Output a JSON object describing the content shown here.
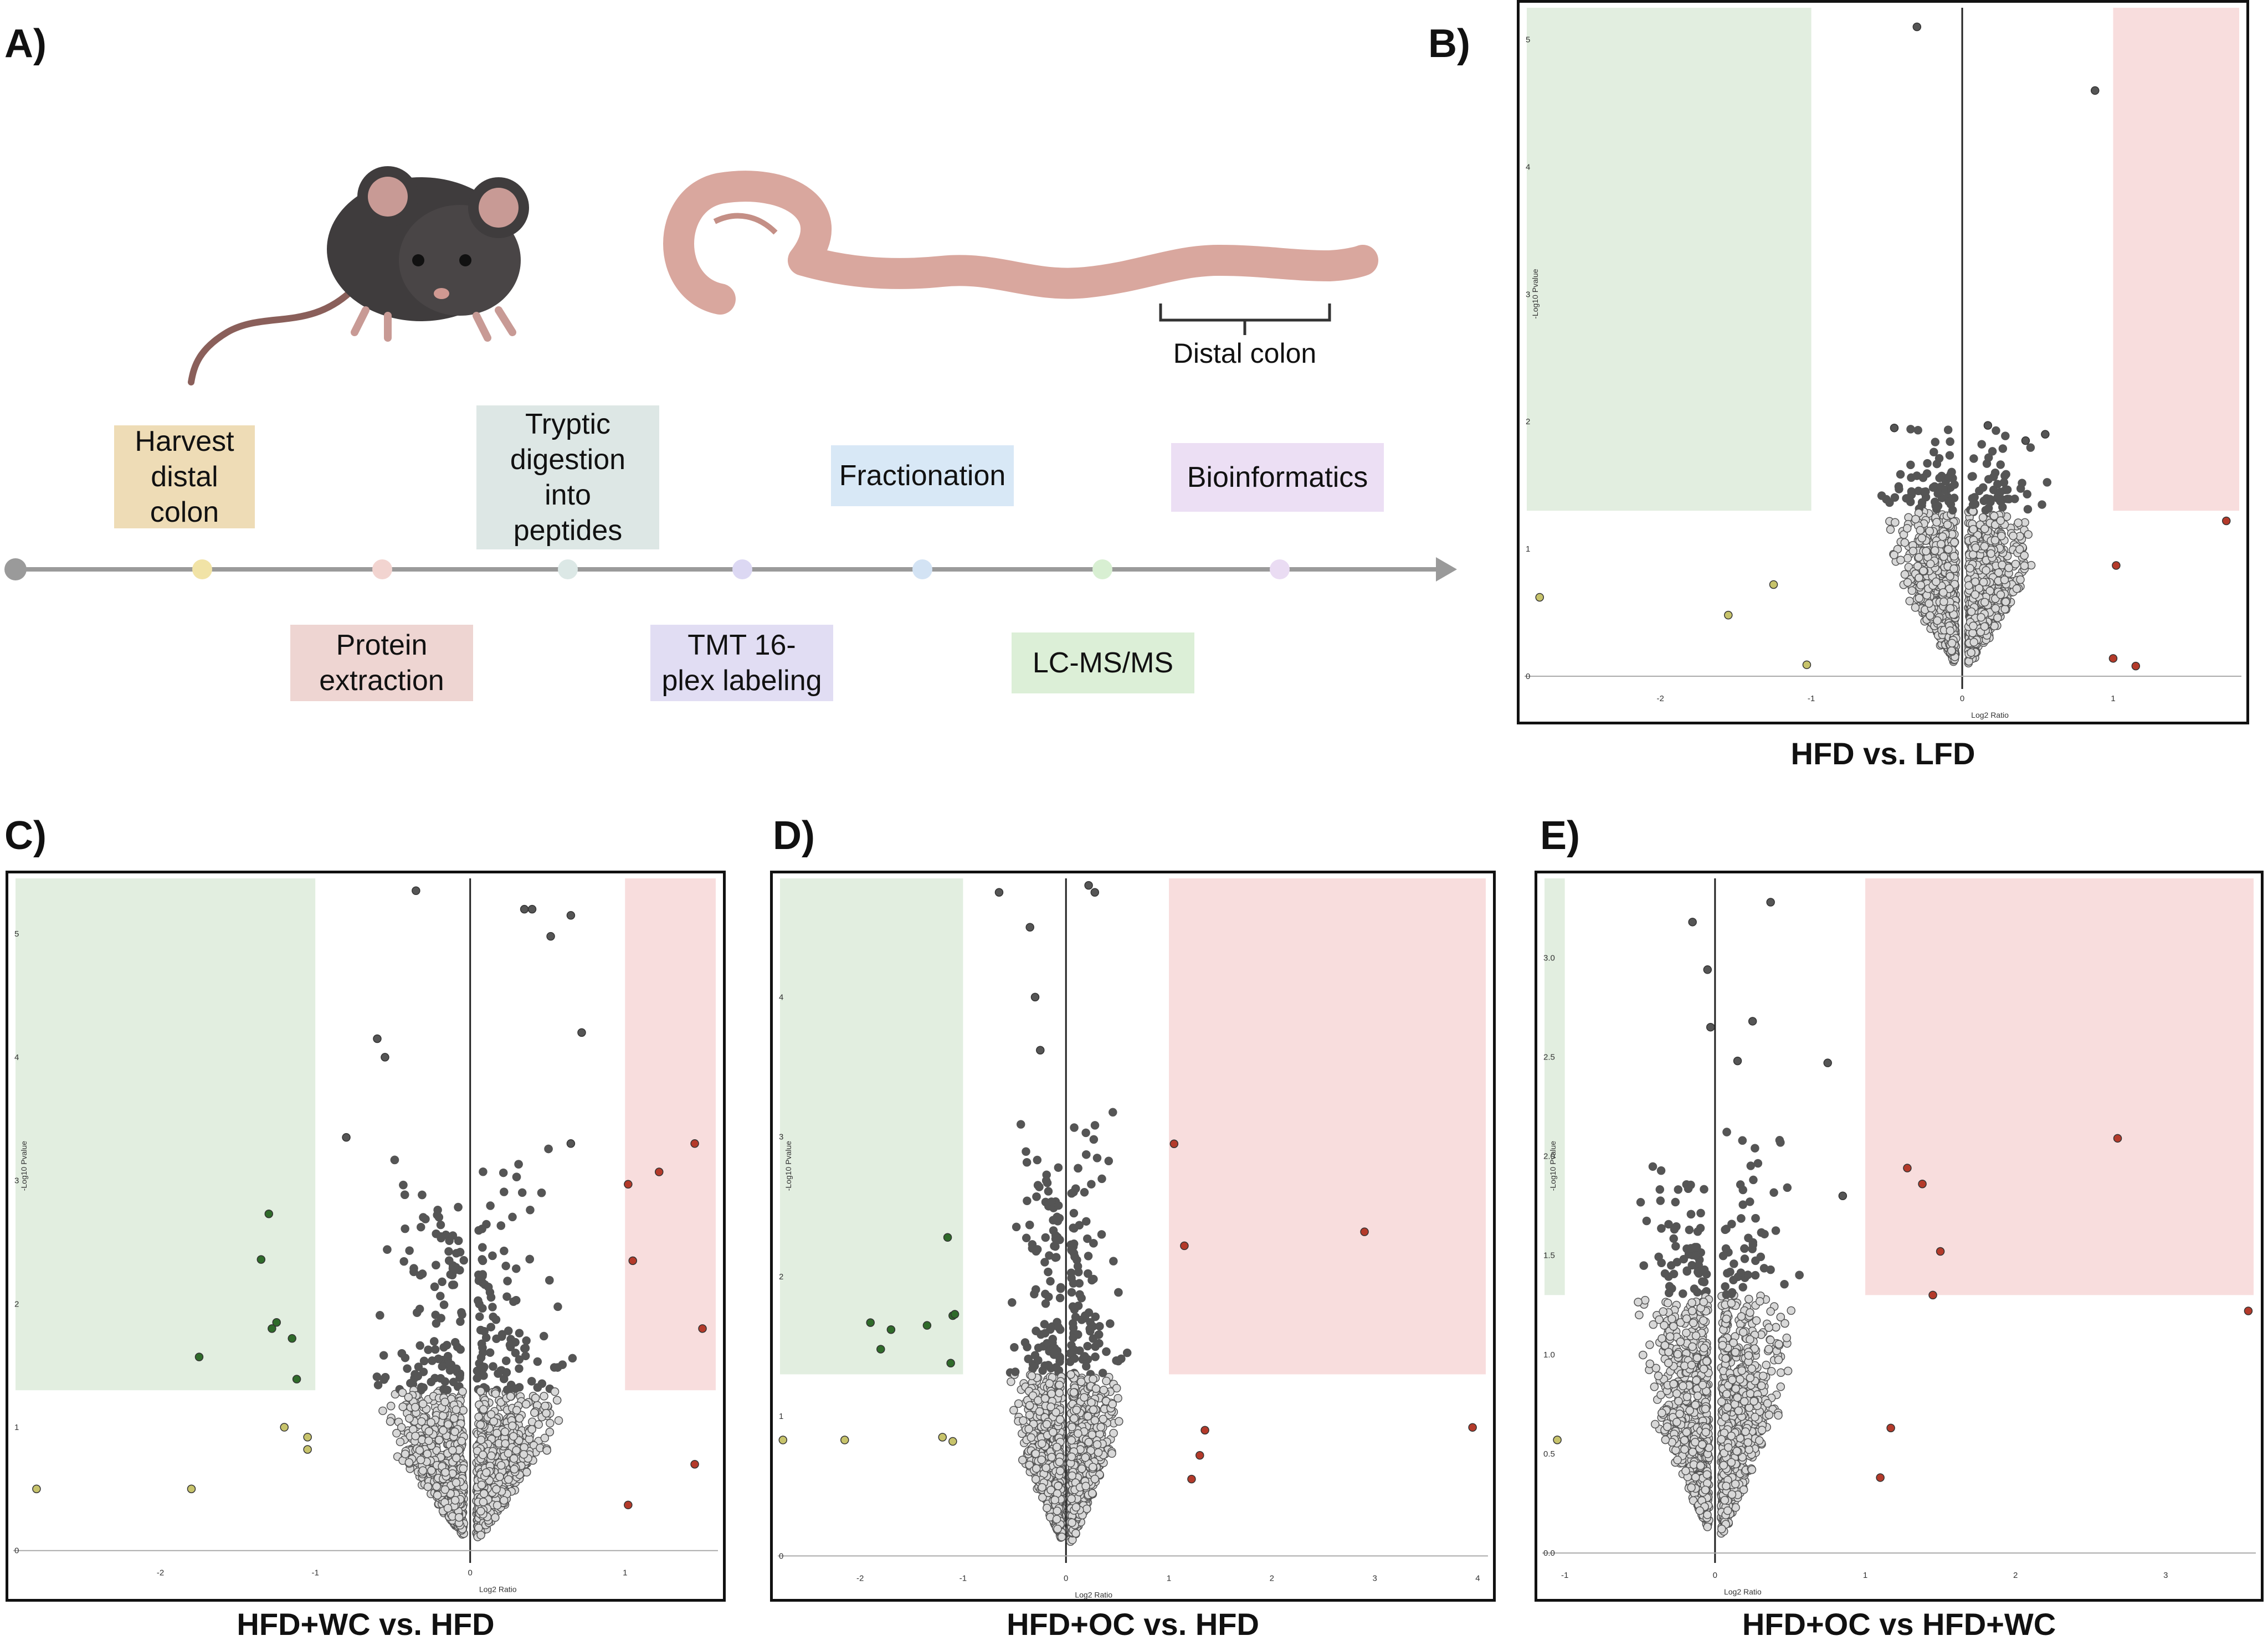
{
  "panels": {
    "a": {
      "label": "A)"
    },
    "b": {
      "label": "B)",
      "caption": "HFD vs. LFD"
    },
    "c": {
      "label": "C)",
      "caption": "HFD+WC vs. HFD"
    },
    "d": {
      "label": "D)",
      "caption": "HFD+OC vs. HFD"
    },
    "e": {
      "label": "E)",
      "caption": "HFD+OC vs HFD+WC"
    }
  },
  "workflow": {
    "colon_label": "Distal colon",
    "steps_above": [
      {
        "label": "Harvest\ndistal colon",
        "color": "#eedcb6",
        "dot": "#f1e3a6"
      },
      {
        "label": "Tryptic\ndigestion\ninto\npeptides",
        "color": "#dde7e5",
        "dot": "#dce8e6"
      },
      {
        "label": "Fractionation",
        "color": "#d8e8f6",
        "dot": "#d3e3f4"
      },
      {
        "label": "Bioinformatics",
        "color": "#ecdff4",
        "dot": "#eadcf3"
      }
    ],
    "steps_below": [
      {
        "label": "Protein\nextraction",
        "color": "#eed5d2",
        "dot": "#f2d4d0"
      },
      {
        "label": "TMT 16-\nplex labeling",
        "color": "#e1ddf3",
        "dot": "#dcd8f3"
      },
      {
        "label": "LC-MS/MS",
        "color": "#dcefd7",
        "dot": "#d8efd2"
      }
    ]
  },
  "chart_data": [
    {
      "id": "B",
      "type": "scatter",
      "title": "HFD vs. LFD",
      "xlabel": "Log2 Ratio",
      "ylabel": "-Log10 Pvalue",
      "xlim": [
        -2.9,
        1.85
      ],
      "ylim": [
        -0.1,
        5.25
      ],
      "xticks": [
        -2,
        -1,
        0,
        1
      ],
      "yticks": [
        0,
        1,
        2,
        3,
        4,
        5
      ],
      "down_region": {
        "xmax": -1,
        "ymin": 1.3
      },
      "up_region": {
        "xmin": 1,
        "ymin": 1.3
      },
      "n_background": 1900,
      "spread": 0.16,
      "max_y": 1.95,
      "highlight_down": [
        [
          -2.8,
          0.62
        ],
        [
          -1.55,
          0.48
        ],
        [
          -1.25,
          0.72
        ],
        [
          -1.03,
          0.09
        ]
      ],
      "highlight_up": [
        [
          1.75,
          1.22
        ],
        [
          1.02,
          0.87
        ],
        [
          1.0,
          0.14
        ],
        [
          1.15,
          0.08
        ]
      ],
      "outliers": [
        [
          -0.3,
          5.1
        ],
        [
          0.88,
          4.6
        ],
        [
          -0.45,
          1.95
        ],
        [
          0.17,
          1.97
        ],
        [
          0.55,
          1.9
        ],
        [
          0.42,
          1.85
        ]
      ]
    },
    {
      "id": "C",
      "type": "scatter",
      "title": "HFD+WC vs. HFD",
      "xlabel": "Log2 Ratio",
      "ylabel": "-Log10 Pvalue",
      "xlim": [
        -2.95,
        1.6
      ],
      "ylim": [
        -0.1,
        5.45
      ],
      "xticks": [
        -2,
        -1,
        0,
        1
      ],
      "yticks": [
        0,
        1,
        2,
        3,
        4,
        5
      ],
      "down_region": {
        "xmax": -1,
        "ymin": 1.3
      },
      "up_region": {
        "xmin": 1,
        "ymin": 1.3
      },
      "n_background": 2300,
      "spread": 0.2,
      "max_y": 3.3,
      "highlight_down": [
        [
          -1.3,
          2.73
        ],
        [
          -1.35,
          2.36
        ],
        [
          -1.25,
          1.85
        ],
        [
          -1.28,
          1.8
        ],
        [
          -1.15,
          1.72
        ],
        [
          -1.75,
          1.57
        ],
        [
          -1.12,
          1.39
        ],
        [
          -1.2,
          1.0
        ],
        [
          -1.05,
          0.92
        ],
        [
          -1.05,
          0.82
        ],
        [
          -2.8,
          0.5
        ],
        [
          -1.8,
          0.5
        ]
      ],
      "highlight_up": [
        [
          1.45,
          3.3
        ],
        [
          1.22,
          3.07
        ],
        [
          1.02,
          2.97
        ],
        [
          1.05,
          2.35
        ],
        [
          1.5,
          1.8
        ],
        [
          1.45,
          0.7
        ],
        [
          1.02,
          0.37
        ]
      ],
      "outliers": [
        [
          -0.35,
          5.35
        ],
        [
          0.35,
          5.2
        ],
        [
          0.4,
          5.2
        ],
        [
          0.65,
          5.15
        ],
        [
          0.52,
          4.98
        ],
        [
          -0.6,
          4.15
        ],
        [
          -0.55,
          4.0
        ],
        [
          0.72,
          4.2
        ],
        [
          -0.8,
          3.35
        ],
        [
          0.65,
          3.3
        ]
      ]
    },
    {
      "id": "D",
      "type": "scatter",
      "title": "HFD+OC vs. HFD",
      "xlabel": "Log2 Ratio",
      "ylabel": "-Log10 Pvalue",
      "xlim": [
        -2.8,
        4.1
      ],
      "ylim": [
        -0.05,
        4.85
      ],
      "xticks": [
        -2,
        -1,
        0,
        1,
        2,
        3,
        4
      ],
      "yticks": [
        0,
        1,
        2,
        3,
        4
      ],
      "down_region": {
        "xmax": -1,
        "ymin": 1.3
      },
      "up_region": {
        "xmin": 1,
        "ymin": 1.3
      },
      "n_background": 2100,
      "spread": 0.18,
      "max_y": 3.3,
      "highlight_down": [
        [
          -1.15,
          2.28
        ],
        [
          -1.1,
          1.72
        ],
        [
          -1.08,
          1.73
        ],
        [
          -1.9,
          1.67
        ],
        [
          -1.7,
          1.62
        ],
        [
          -1.35,
          1.65
        ],
        [
          -1.8,
          1.48
        ],
        [
          -1.12,
          1.38
        ],
        [
          -2.75,
          0.83
        ],
        [
          -2.15,
          0.83
        ],
        [
          -1.2,
          0.85
        ],
        [
          -1.1,
          0.82
        ]
      ],
      "highlight_up": [
        [
          1.05,
          2.95
        ],
        [
          1.15,
          2.22
        ],
        [
          2.9,
          2.32
        ],
        [
          3.95,
          0.92
        ],
        [
          1.35,
          0.9
        ],
        [
          1.3,
          0.72
        ],
        [
          1.22,
          0.55
        ]
      ],
      "outliers": [
        [
          -0.65,
          4.75
        ],
        [
          0.22,
          4.8
        ],
        [
          0.28,
          4.75
        ],
        [
          -0.35,
          4.5
        ],
        [
          -0.3,
          4.0
        ],
        [
          -0.25,
          3.62
        ]
      ]
    },
    {
      "id": "E",
      "type": "scatter",
      "title": "HFD+OC vs HFD+WC",
      "xlabel": "Log2 Ratio",
      "ylabel": "-Log10 Pvalue",
      "xlim": [
        -1.15,
        3.6
      ],
      "ylim": [
        -0.05,
        3.4
      ],
      "xticks": [
        -1,
        0,
        1,
        2,
        3
      ],
      "yticks": [
        0.0,
        0.5,
        1.0,
        1.5,
        2.0,
        2.5,
        3.0
      ],
      "down_region": {
        "xmax": -1,
        "ymin": 1.3
      },
      "up_region": {
        "xmin": 1,
        "ymin": 1.3
      },
      "n_background": 2000,
      "spread": 0.17,
      "max_y": 2.15,
      "highlight_down": [
        [
          -1.05,
          0.57
        ]
      ],
      "highlight_up": [
        [
          2.68,
          2.09
        ],
        [
          1.28,
          1.94
        ],
        [
          1.38,
          1.86
        ],
        [
          1.5,
          1.52
        ],
        [
          1.45,
          1.3
        ],
        [
          3.55,
          1.22
        ],
        [
          1.17,
          0.63
        ],
        [
          1.1,
          0.38
        ]
      ],
      "outliers": [
        [
          0.37,
          3.28
        ],
        [
          -0.15,
          3.18
        ],
        [
          -0.05,
          2.94
        ],
        [
          0.25,
          2.68
        ],
        [
          -0.03,
          2.65
        ],
        [
          0.75,
          2.47
        ],
        [
          0.85,
          1.8
        ],
        [
          0.15,
          2.48
        ]
      ]
    }
  ]
}
